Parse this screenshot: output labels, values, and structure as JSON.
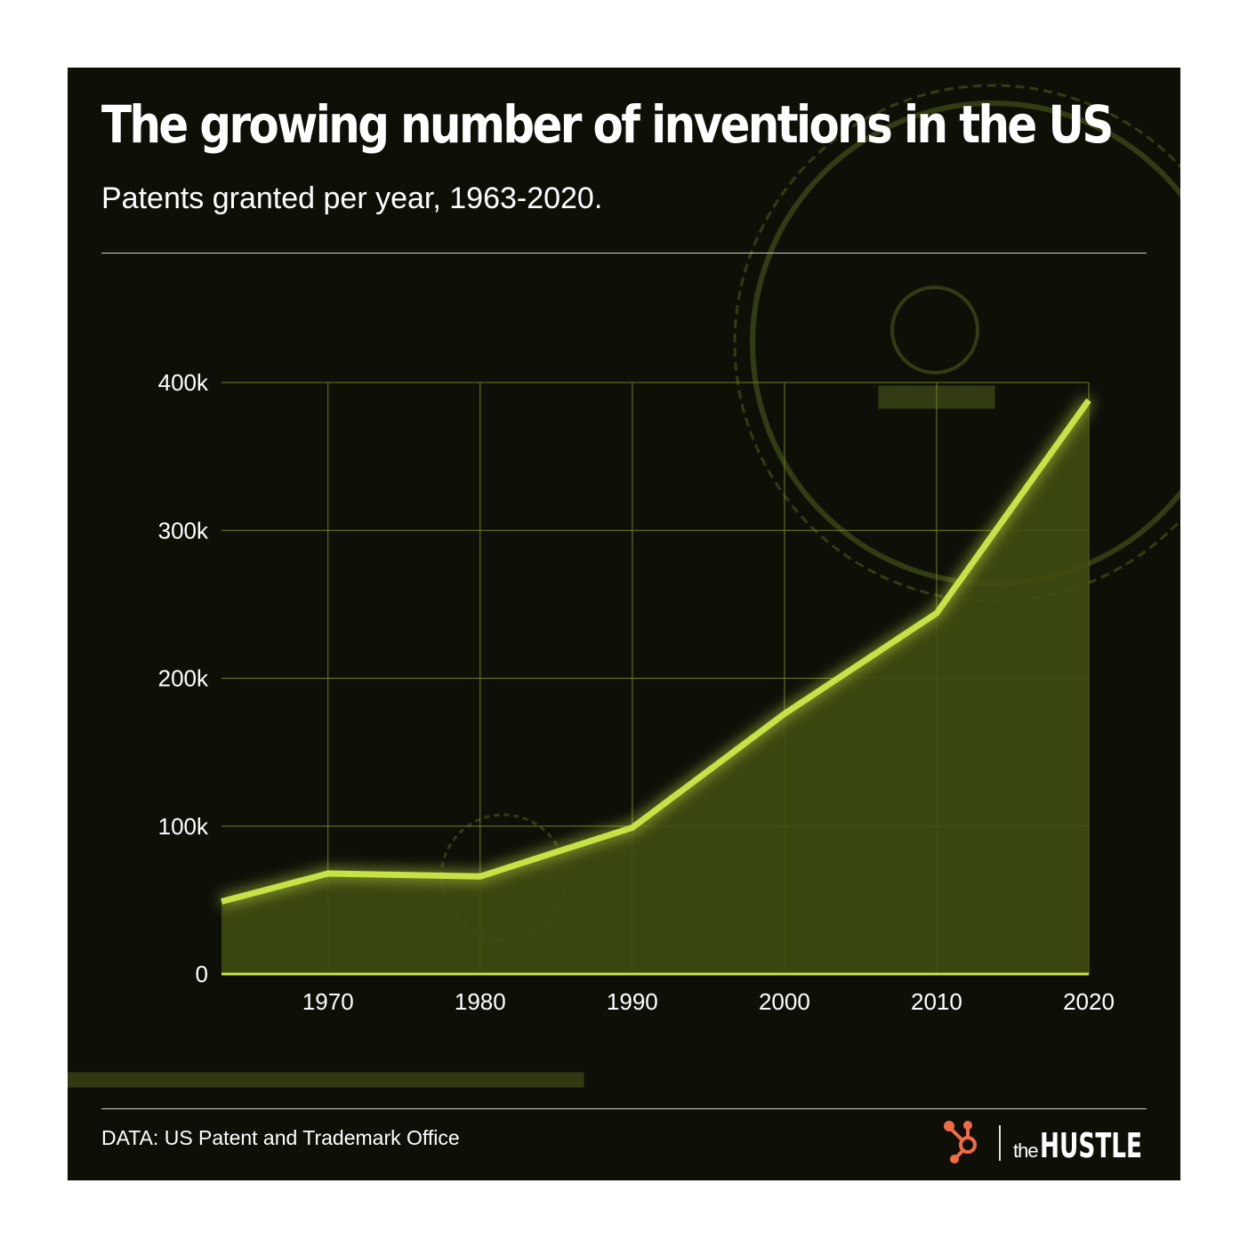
{
  "title": "The growing number of inventions in the US",
  "subtitle": "Patents granted per year, 1963-2020.",
  "source": "DATA: US Patent and Trademark Office",
  "logo": {
    "brand": "the HUSTLE",
    "icon": "hubspot-sprocket-icon",
    "color": "#f26b45"
  },
  "colors": {
    "background": "#0e1008",
    "line": "#c6e246",
    "fill": "#3f4d11",
    "grid": "#6f7f22"
  },
  "chart_data": {
    "type": "area",
    "title": "The growing number of inventions in the US",
    "subtitle": "Patents granted per year, 1963-2020.",
    "xlabel": "",
    "ylabel": "",
    "x": [
      1963,
      1970,
      1980,
      1990,
      2000,
      2010,
      2020
    ],
    "values": [
      49000,
      68000,
      66000,
      99000,
      176000,
      244000,
      388000
    ],
    "xlim": [
      1963,
      2020
    ],
    "ylim": [
      0,
      400000
    ],
    "x_ticks": [
      1970,
      1980,
      1990,
      2000,
      2010,
      2020
    ],
    "x_tick_labels": [
      "1970",
      "1980",
      "1990",
      "2000",
      "2010",
      "2020"
    ],
    "y_ticks": [
      0,
      100000,
      200000,
      300000,
      400000
    ],
    "y_tick_labels": [
      "0",
      "100k",
      "200k",
      "300k",
      "400k"
    ],
    "grid": true,
    "legend": "none"
  }
}
